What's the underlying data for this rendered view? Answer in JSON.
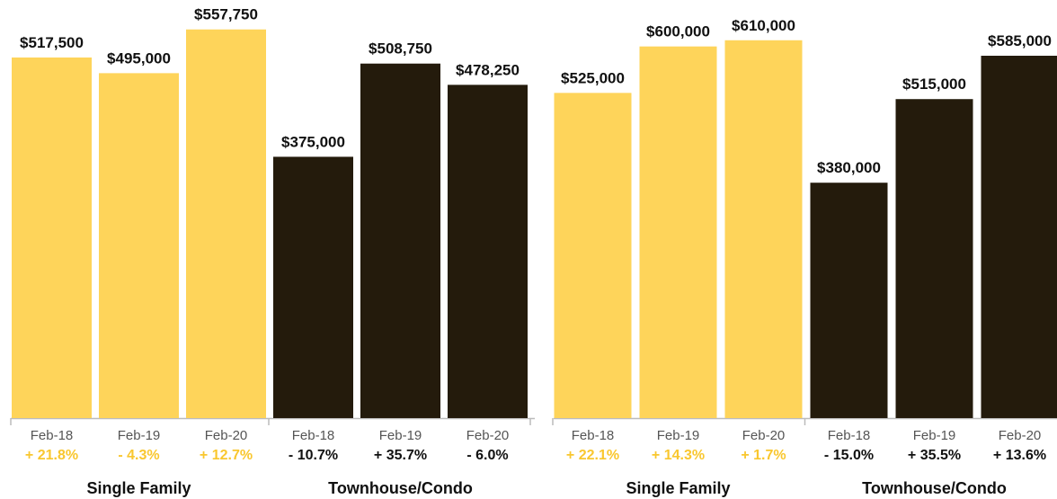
{
  "colors": {
    "single_family": "#FED45A",
    "townhouse_condo": "#241B0C",
    "positive_change_sf": "#F9C72F",
    "change_condo": "#111111",
    "axis": "#BBBBBB"
  },
  "chart_data": [
    {
      "type": "bar",
      "ylim": [
        0,
        600000
      ],
      "groups": [
        {
          "label": "Single Family",
          "color_key": "single_family",
          "categories": [
            "Feb-18",
            "Feb-19",
            "Feb-20"
          ],
          "values": [
            517500,
            495000,
            557750
          ],
          "value_labels": [
            "$517,500",
            "$495,000",
            "$557,750"
          ],
          "changes": [
            "+ 21.8%",
            "- 4.3%",
            "+ 12.7%"
          ]
        },
        {
          "label": "Townhouse/Condo",
          "color_key": "townhouse_condo",
          "categories": [
            "Feb-18",
            "Feb-19",
            "Feb-20"
          ],
          "values": [
            375000,
            508750,
            478250
          ],
          "value_labels": [
            "$375,000",
            "$508,750",
            "$478,250"
          ],
          "changes": [
            "- 10.7%",
            "+ 35.7%",
            "- 6.0%"
          ]
        }
      ]
    },
    {
      "type": "bar",
      "ylim": [
        0,
        675000
      ],
      "groups": [
        {
          "label": "Single Family",
          "color_key": "single_family",
          "categories": [
            "Feb-18",
            "Feb-19",
            "Feb-20"
          ],
          "values": [
            525000,
            600000,
            610000
          ],
          "value_labels": [
            "$525,000",
            "$600,000",
            "$610,000"
          ],
          "changes": [
            "+ 22.1%",
            "+ 14.3%",
            "+ 1.7%"
          ]
        },
        {
          "label": "Townhouse/Condo",
          "color_key": "townhouse_condo",
          "categories": [
            "Feb-18",
            "Feb-19",
            "Feb-20"
          ],
          "values": [
            380000,
            515000,
            585000
          ],
          "value_labels": [
            "$380,000",
            "$515,000",
            "$585,000"
          ],
          "changes": [
            "- 15.0%",
            "+ 35.5%",
            "+ 13.6%"
          ]
        }
      ]
    }
  ]
}
